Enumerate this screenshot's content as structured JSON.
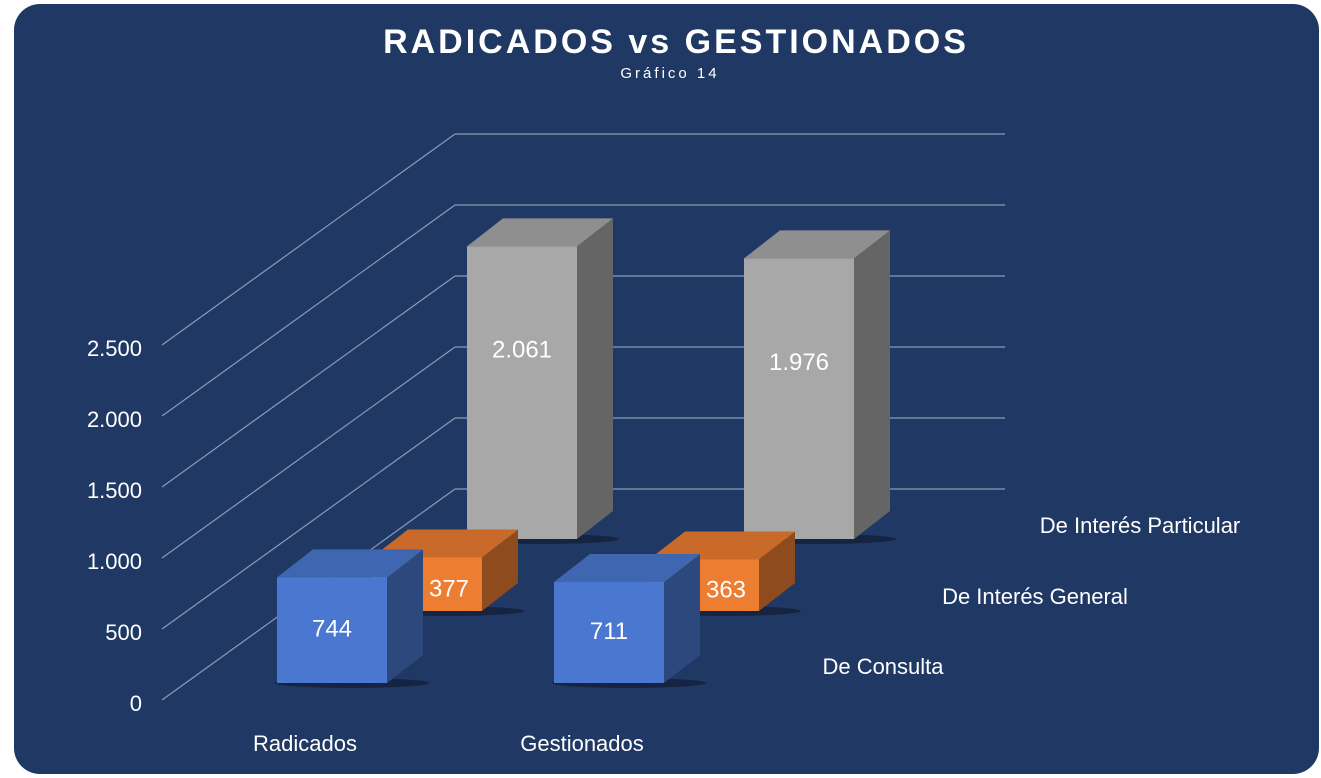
{
  "chart_data": {
    "type": "bar3d",
    "title": "RADICADOS vs GESTIONADOS",
    "subtitle": "Gráfico 14",
    "categories": [
      "Radicados",
      "Gestionados"
    ],
    "series": [
      {
        "name": "De Consulta",
        "color": "#4a78d0",
        "values": [
          744,
          711
        ],
        "value_labels": [
          "744",
          "711"
        ]
      },
      {
        "name": "De Interés General",
        "color": "#ed7d31",
        "values": [
          377,
          363
        ],
        "value_labels": [
          "377",
          "363"
        ]
      },
      {
        "name": "De Interés Particular",
        "color": "#a8a8a8",
        "values": [
          2061,
          1976
        ],
        "value_labels": [
          "2.061",
          "1.976"
        ]
      }
    ],
    "ylim": [
      0,
      2500
    ],
    "yticks": [
      0,
      500,
      {
        "value": 1000,
        "label": "1.000"
      },
      {
        "value": 1500,
        "label": "1.500"
      },
      {
        "value": 2000,
        "label": "2.000"
      },
      {
        "value": 2500,
        "label": "2.500"
      }
    ],
    "grid": true
  }
}
